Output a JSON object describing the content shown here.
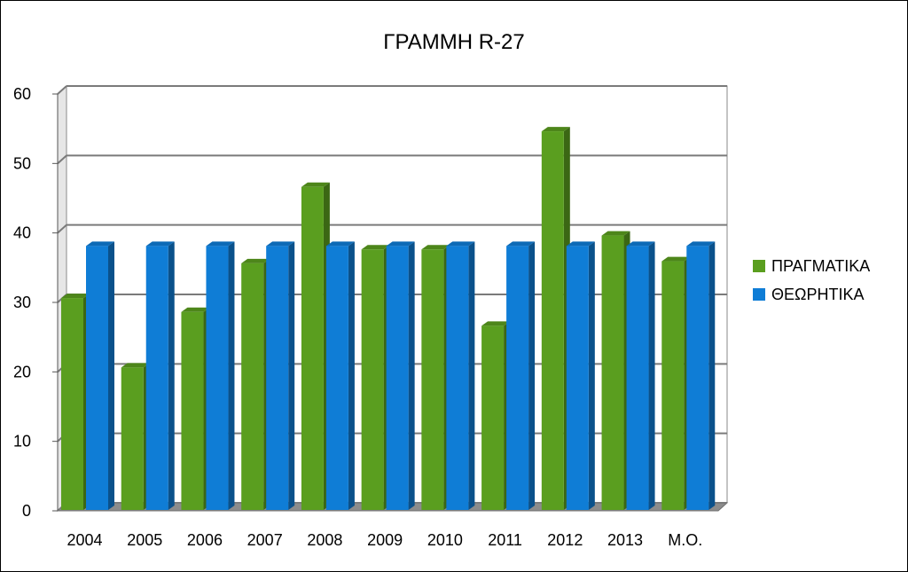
{
  "chart_data": {
    "type": "bar",
    "title": "ΓΡΑΜΜΗ R-27",
    "categories": [
      "2004",
      "2005",
      "2006",
      "2007",
      "2008",
      "2009",
      "2010",
      "2011",
      "2012",
      "2013",
      "Μ.Ο."
    ],
    "series": [
      {
        "name": "ΠΡΑΓΜΑΤΙΚΑ",
        "color": "#5a9e1f",
        "values": [
          30.5,
          20.5,
          28.5,
          35.5,
          46.5,
          37.5,
          37.5,
          26.5,
          54.5,
          39.5,
          35.8
        ]
      },
      {
        "name": "ΘΕΩΡΗΤΙΚΑ",
        "color": "#0f7dd6",
        "values": [
          38,
          38,
          38,
          38,
          38,
          38,
          38,
          38,
          38,
          38,
          38
        ]
      }
    ],
    "ylim": [
      0,
      60
    ],
    "yticks": [
      0,
      10,
      20,
      30,
      40,
      50,
      60
    ],
    "grid": true,
    "legend_position": "right",
    "style": "3d-clustered"
  }
}
